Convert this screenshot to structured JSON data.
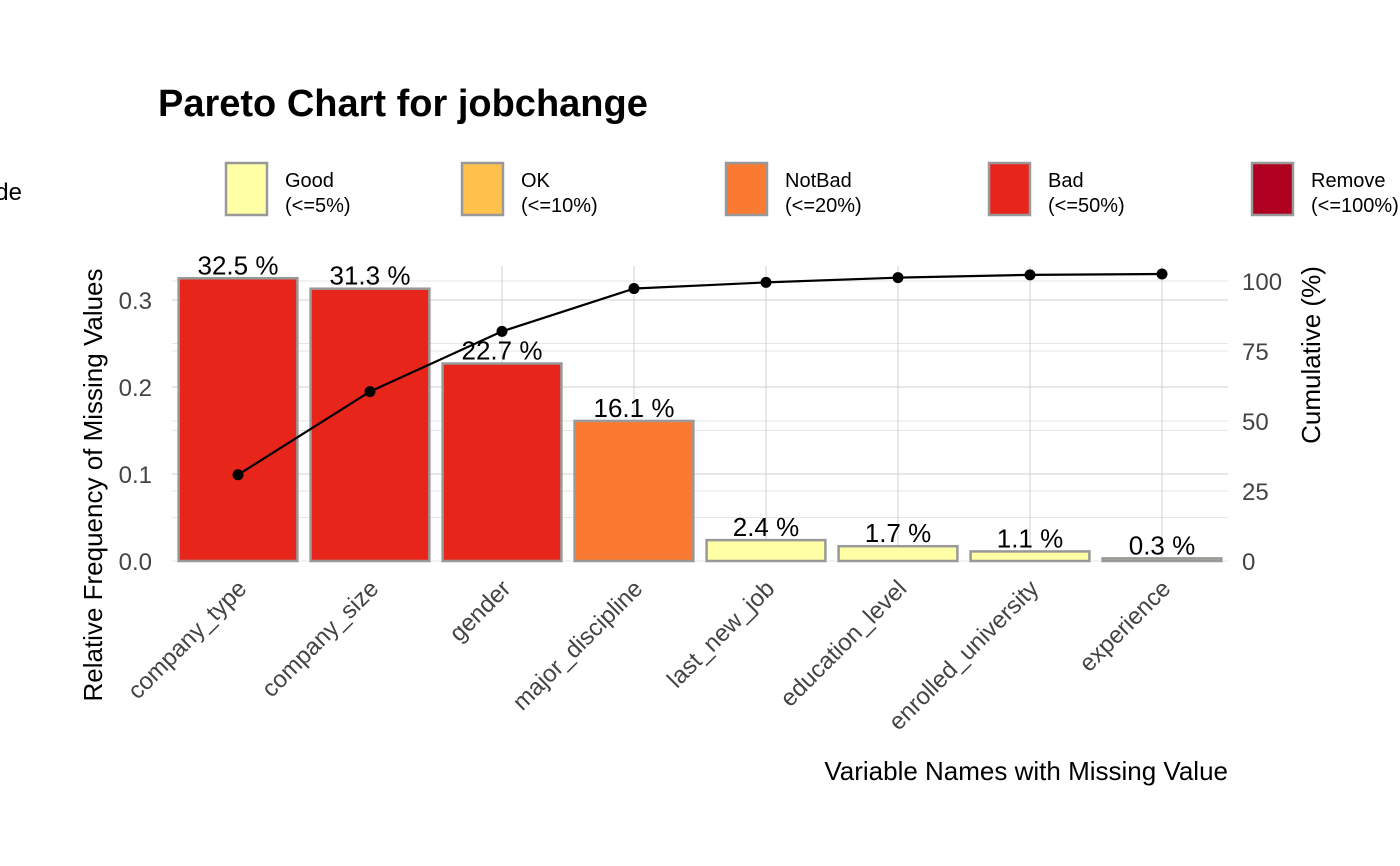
{
  "chart_data": {
    "type": "bar",
    "title": "Pareto Chart for jobchange",
    "xlabel": "Variable Names with Missing Value",
    "ylabel": "Relative Frequency of Missing Values",
    "y2label": "Cumulative (%)",
    "categories": [
      "company_type",
      "company_size",
      "gender",
      "major_discipline",
      "last_new_job",
      "education_level",
      "enrolled_university",
      "experience"
    ],
    "values": [
      0.325,
      0.313,
      0.227,
      0.161,
      0.024,
      0.017,
      0.011,
      0.003
    ],
    "data_labels": [
      "32.5 %",
      "31.3 %",
      "22.7 %",
      "16.1 %",
      "2.4 %",
      "1.7 %",
      "1.1 %",
      "0.3 %"
    ],
    "bar_grades": [
      "Bad",
      "Bad",
      "Bad",
      "NotBad",
      "Good",
      "Good",
      "Good",
      "Good"
    ],
    "cumulative": [
      30.8,
      60.5,
      82.0,
      97.3,
      99.5,
      101.2,
      102.2,
      102.5
    ],
    "ylim": [
      0,
      0.35
    ],
    "yticks": [
      "0.0",
      "0.1",
      "0.2",
      "0.3"
    ],
    "ytick_values": [
      0,
      0.1,
      0.2,
      0.3
    ],
    "y2lim": [
      0,
      110
    ],
    "y2ticks": [
      "0",
      "25",
      "50",
      "75",
      "100"
    ],
    "y2tick_values": [
      0,
      25,
      50,
      75,
      100
    ],
    "grid": true,
    "legend": {
      "title": "Missing Grade",
      "placement": "top",
      "entries": [
        {
          "name": "Good",
          "range": "(<=5%)",
          "color": "#FFFFA6"
        },
        {
          "name": "OK",
          "range": "(<=10%)",
          "color": "#FEC14C"
        },
        {
          "name": "NotBad",
          "range": "(<=20%)",
          "color": "#FB7A31"
        },
        {
          "name": "Bad",
          "range": "(<=50%)",
          "color": "#E8251B"
        },
        {
          "name": "Remove",
          "range": "(<=100%)",
          "color": "#B00022"
        }
      ]
    },
    "colors": {
      "Good": "#FFFFA6",
      "OK": "#FEC14C",
      "NotBad": "#FB7A31",
      "Bad": "#E8251B",
      "Remove": "#B00022",
      "bar_outline": "#999999",
      "line": "#000000"
    }
  }
}
